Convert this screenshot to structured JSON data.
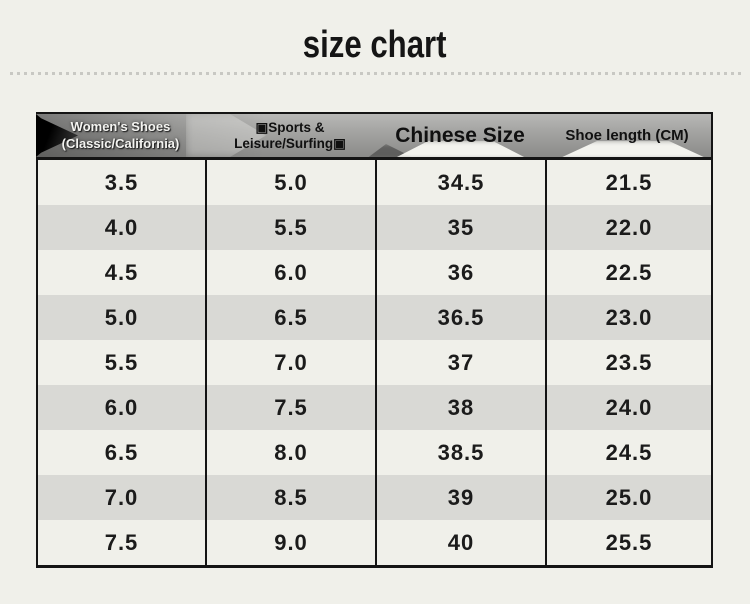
{
  "page": {
    "title": "size chart",
    "background_color": "#f0f0ea",
    "divider_dot_color": "#c8c8c3"
  },
  "table": {
    "headers": [
      {
        "line1": "Women's Shoes",
        "line2": "(Classic/California)"
      },
      {
        "label": "▣Sports & Leisure/Surfing▣"
      },
      {
        "label": "Chinese Size"
      },
      {
        "label": "Shoe length (CM)"
      }
    ],
    "rows": [
      [
        "3.5",
        "5.0",
        "34.5",
        "21.5"
      ],
      [
        "4.0",
        "5.5",
        "35",
        "22.0"
      ],
      [
        "4.5",
        "6.0",
        "36",
        "22.5"
      ],
      [
        "5.0",
        "6.5",
        "36.5",
        "23.0"
      ],
      [
        "5.5",
        "7.0",
        "37",
        "23.5"
      ],
      [
        "6.0",
        "7.5",
        "38",
        "24.0"
      ],
      [
        "6.5",
        "8.0",
        "38.5",
        "24.5"
      ],
      [
        "7.0",
        "8.5",
        "39",
        "25.0"
      ],
      [
        "7.5",
        "9.0",
        "40",
        "25.5"
      ]
    ],
    "colors": {
      "header_gradient_top": "#b8b8b6",
      "header_gradient_bottom": "#8b8b89",
      "row_even": "#f0f0ea",
      "row_odd": "#d9d9d5",
      "border": "#141414",
      "header_col1_text": "#f4f4f1",
      "header_text": "#101010",
      "cell_text": "#1b1b1b"
    }
  },
  "chart_data": {
    "type": "table",
    "title": "size chart",
    "columns": [
      "Women's Shoes (Classic/California)",
      "Sports & Leisure/Surfing",
      "Chinese Size",
      "Shoe length (CM)"
    ],
    "rows": [
      [
        "3.5",
        "5.0",
        "34.5",
        "21.5"
      ],
      [
        "4.0",
        "5.5",
        "35",
        "22.0"
      ],
      [
        "4.5",
        "6.0",
        "36",
        "22.5"
      ],
      [
        "5.0",
        "6.5",
        "36.5",
        "23.0"
      ],
      [
        "5.5",
        "7.0",
        "37",
        "23.5"
      ],
      [
        "6.0",
        "7.5",
        "38",
        "24.0"
      ],
      [
        "6.5",
        "8.0",
        "38.5",
        "24.5"
      ],
      [
        "7.0",
        "8.5",
        "39",
        "25.0"
      ],
      [
        "7.5",
        "9.0",
        "40",
        "25.5"
      ]
    ],
    "layout_hints": {
      "alternating_row_shading": true,
      "header_style": "gray ribbon banner with black left arrow and white fold highlights"
    }
  }
}
